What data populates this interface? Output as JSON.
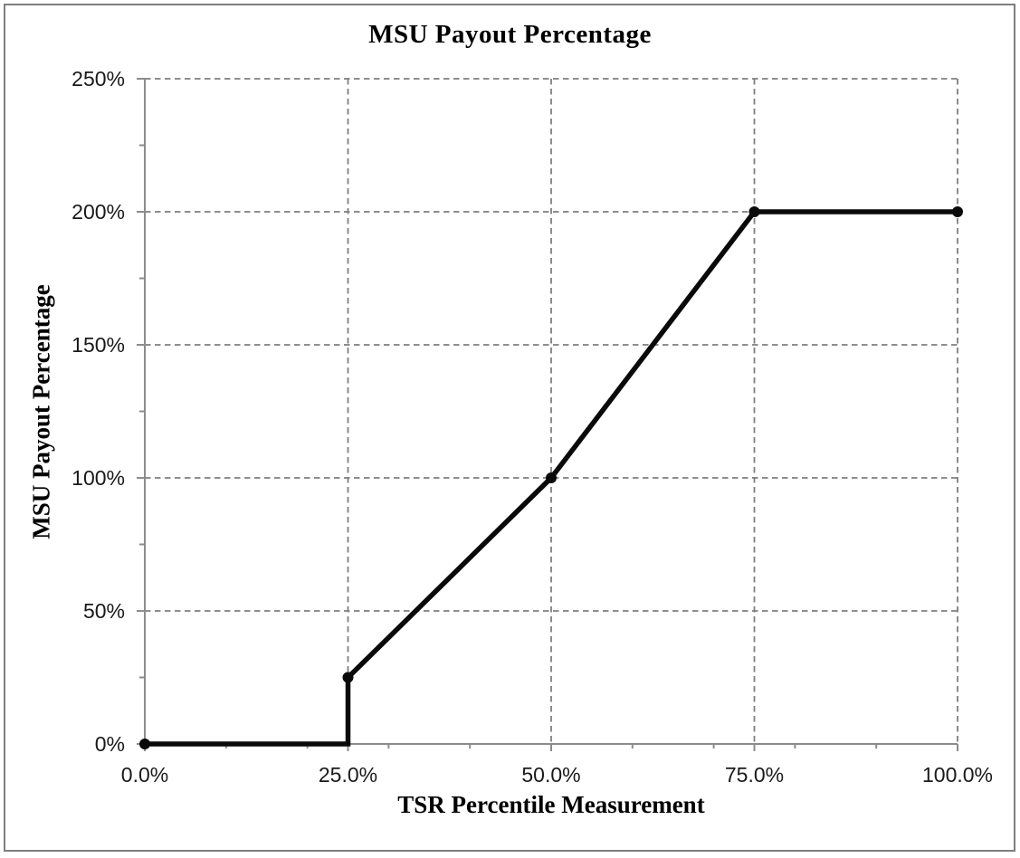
{
  "page": {
    "background": "#ffffff",
    "border_color": "#7f7f7f"
  },
  "chart_data": {
    "type": "line",
    "title": "MSU Payout Percentage",
    "xlabel": "TSR Percentile Measurement",
    "ylabel": "MSU Payout Percentage",
    "x_axis": {
      "min": 0,
      "max": 100,
      "major_unit": 25,
      "minor_unit": 10,
      "tick_labels": [
        "0.0%",
        "25.0%",
        "50.0%",
        "75.0%",
        "100.0%"
      ]
    },
    "y_axis": {
      "min": 0,
      "max": 250,
      "major_unit": 50,
      "minor_unit": 25,
      "tick_labels": [
        "0%",
        "50%",
        "100%",
        "150%",
        "200%",
        "250%"
      ]
    },
    "series": [
      {
        "name": "MSU Payout Percentage",
        "points": [
          [
            0,
            0
          ],
          [
            25,
            0
          ],
          [
            25,
            25
          ],
          [
            50,
            100
          ],
          [
            75,
            200
          ],
          [
            100,
            200
          ]
        ],
        "marker_points": [
          [
            0,
            0
          ],
          [
            25,
            25
          ],
          [
            50,
            100
          ],
          [
            75,
            200
          ],
          [
            100,
            200
          ]
        ],
        "color": "#0a0a0a",
        "line_width": 5.5,
        "marker_radius": 6
      }
    ],
    "grid": {
      "show": true,
      "dashed": true,
      "color": "#7f7f7f"
    },
    "axis_color": "#8c8c8c",
    "tick_label_color": "#1a1a1a",
    "legend": "none"
  }
}
